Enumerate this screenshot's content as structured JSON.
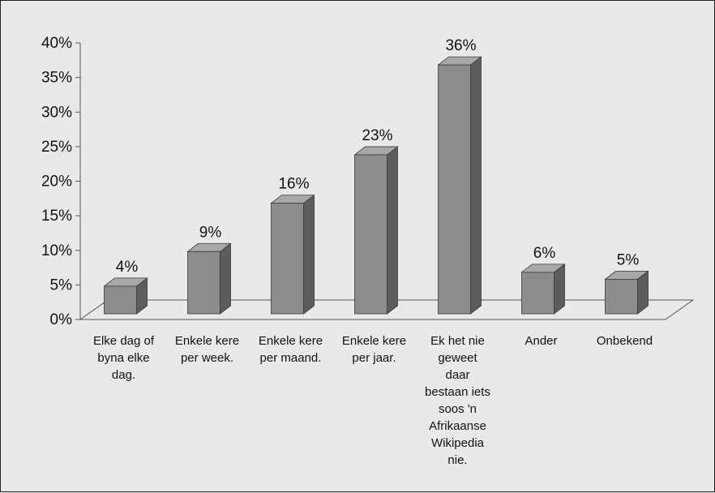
{
  "chart_data": {
    "type": "bar",
    "categories": [
      "Elke dag of byna elke dag.",
      "Enkele kere per week.",
      "Enkele kere per maand.",
      "Enkele kere per jaar.",
      "Ek het nie geweet daar bestaan iets soos 'n Afrikaanse Wikipedia nie.",
      "Ander",
      "Onbekend"
    ],
    "category_lines": [
      [
        "Elke dag of",
        "byna elke",
        "dag."
      ],
      [
        "Enkele kere",
        "per week."
      ],
      [
        "Enkele kere",
        "per maand."
      ],
      [
        "Enkele kere",
        "per jaar."
      ],
      [
        "Ek het nie",
        "geweet",
        "daar",
        "bestaan iets",
        "soos 'n",
        "Afrikaanse",
        "Wikipedia",
        "nie."
      ],
      [
        "Ander"
      ],
      [
        "Onbekend"
      ]
    ],
    "values": [
      4,
      9,
      16,
      23,
      36,
      6,
      5
    ],
    "data_labels": [
      "4%",
      "9%",
      "16%",
      "23%",
      "36%",
      "6%",
      "5%"
    ],
    "ylim": [
      0,
      40
    ],
    "yticks": [
      "0%",
      "5%",
      "10%",
      "15%",
      "20%",
      "25%",
      "30%",
      "35%",
      "40%"
    ],
    "title": "",
    "xlabel": "",
    "ylabel": "",
    "legend": "none",
    "grid": false,
    "style": "3d-bar",
    "colors": {
      "front": "#8c8c8c",
      "side": "#5c5c5c",
      "top": "#a8a8a8",
      "edge": "#3a3a3a"
    }
  }
}
